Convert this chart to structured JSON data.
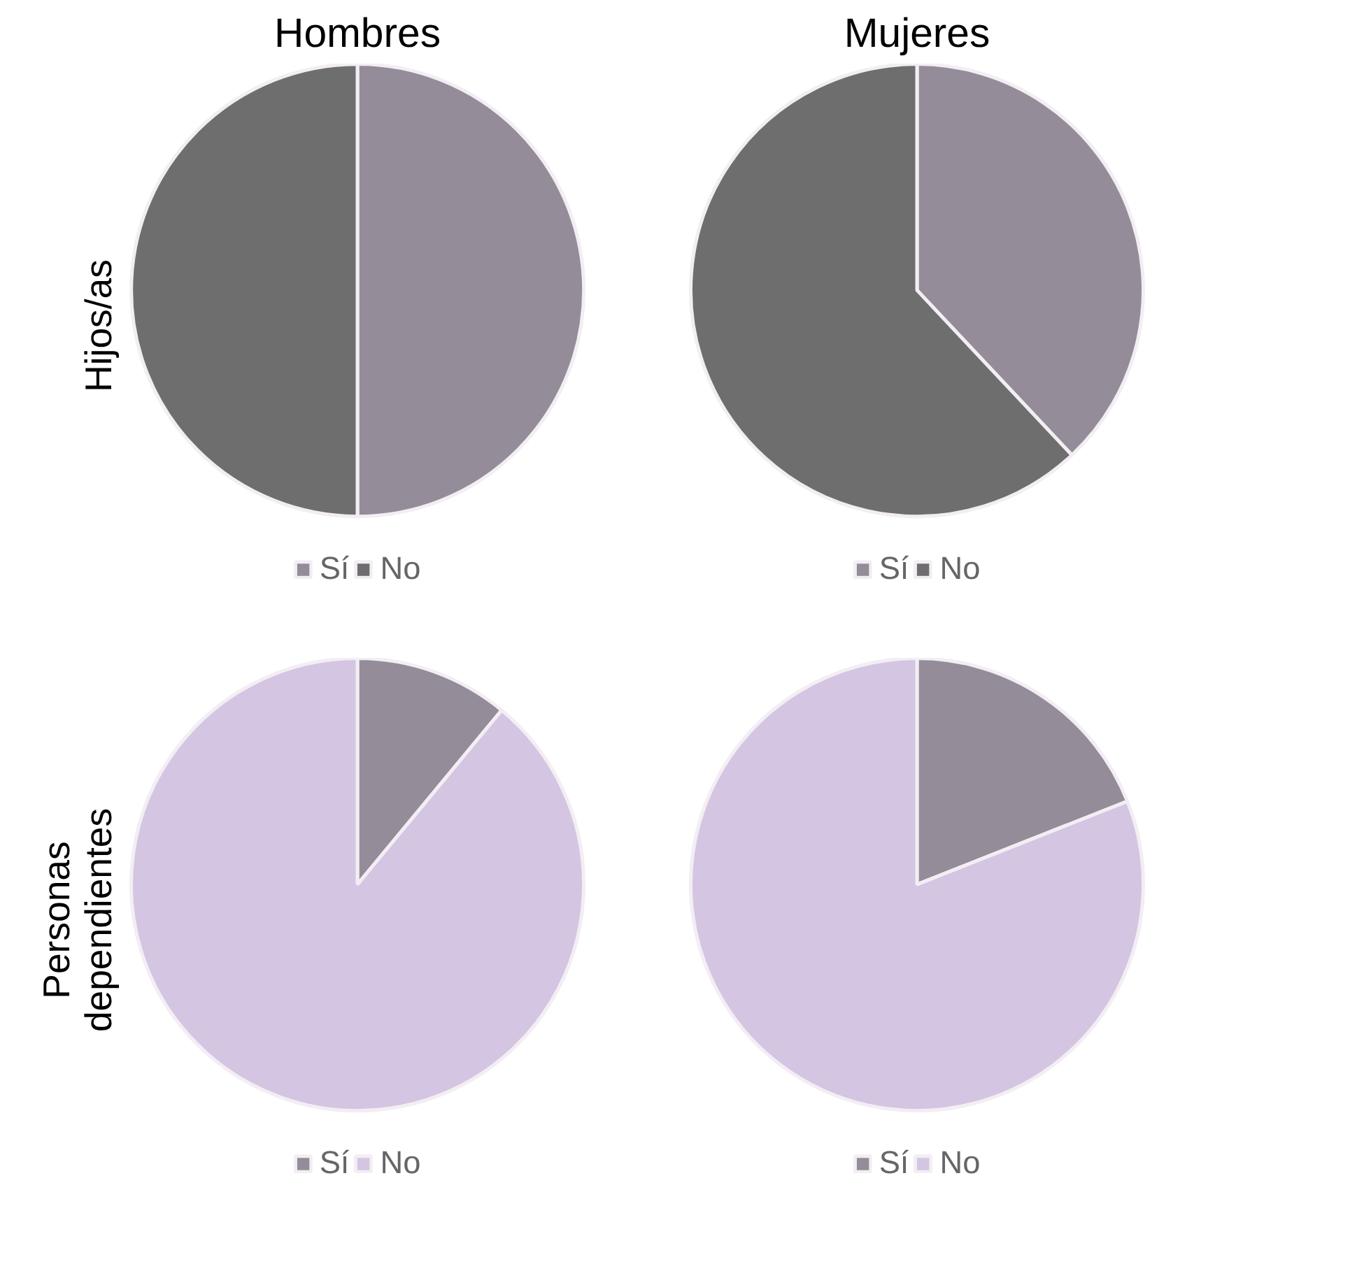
{
  "chart_data": [
    {
      "type": "pie",
      "title": "Hombres",
      "ylabel": "Hijos/as",
      "categories": [
        "Sí",
        "No"
      ],
      "values": [
        50,
        50
      ],
      "colors": [
        "#948c99",
        "#6e6e6e"
      ],
      "legend": "bottom"
    },
    {
      "type": "pie",
      "title": "Mujeres",
      "categories": [
        "Sí",
        "No"
      ],
      "values": [
        38,
        62
      ],
      "colors": [
        "#948c99",
        "#6e6e6e"
      ],
      "legend": "bottom"
    },
    {
      "type": "pie",
      "ylabel": "Personas dependientes",
      "categories": [
        "Sí",
        "No"
      ],
      "values": [
        11,
        89
      ],
      "colors": [
        "#948c99",
        "#d4c5e2"
      ],
      "legend": "bottom"
    },
    {
      "type": "pie",
      "categories": [
        "Sí",
        "No"
      ],
      "values": [
        19,
        81
      ],
      "colors": [
        "#948c99",
        "#d4c5e2"
      ],
      "legend": "bottom"
    }
  ]
}
